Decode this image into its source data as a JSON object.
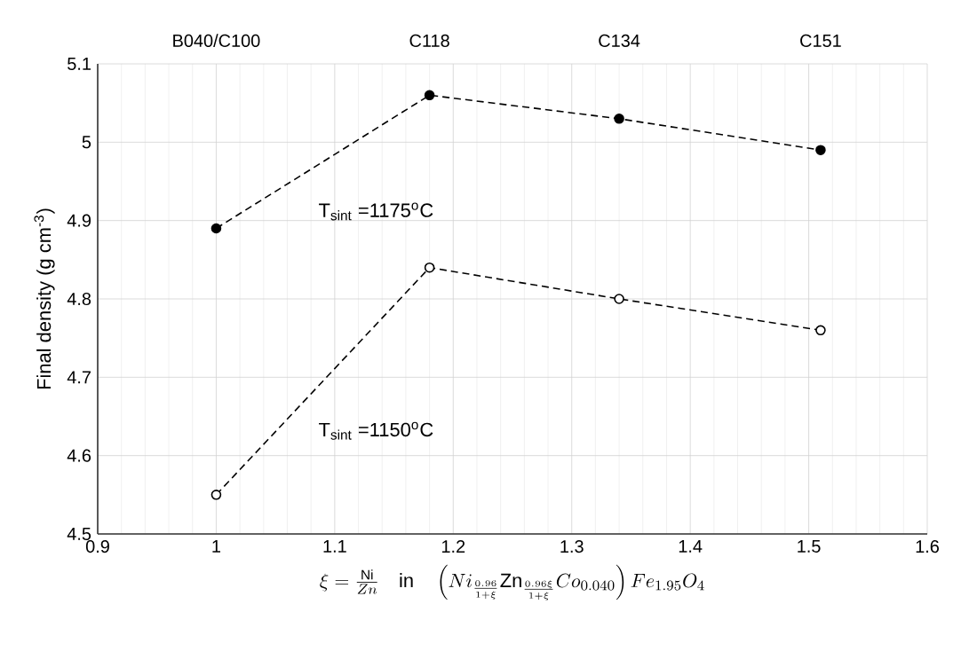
{
  "chart_data": {
    "type": "line",
    "xlabel": "\\xi=\\frac{\\mathrm{Ni}}{Zn}\\quad\\mathrm{in}\\quad\\left(Ni_{\\frac{0.96}{1+\\xi}}\\mathrm{Zn}_{\\frac{0.96\\xi}{1+\\xi}}Co_{0.040}\\right)Fe_{1.95}O_4",
    "ylabel": "Final density (g cm$^{-3}$)",
    "x": [
      1,
      1.18,
      1.34,
      1.51
    ],
    "series": [
      {
        "color": "#000000",
        "values": [
          4.89,
          5.06,
          5.03,
          4.99
        ]
      },
      {
        "color": "#000000",
        "values": [
          4.55,
          4.84,
          4.8,
          4.76
        ]
      }
    ],
    "marker": "circle",
    "line_style": "dashed",
    "grid": true,
    "xlim": [
      0.9,
      1.6
    ],
    "xticks": [
      0.9,
      1,
      1.1,
      1.2,
      1.3,
      1.4,
      1.5,
      1.6
    ],
    "ylim": [
      4.5,
      5.1
    ],
    "yticks": [
      4.5,
      4.6,
      4.7,
      4.8,
      4.9,
      5,
      5.1
    ],
    "annotations": [
      "B040/C100",
      "C118",
      "C134",
      "C151",
      "T$_{sint}$ =1175$^{o}$C",
      "T$_{sint}$ =1150$^{o}$C"
    ]
  }
}
